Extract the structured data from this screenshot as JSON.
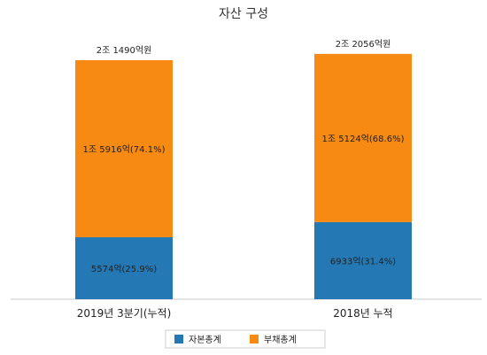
{
  "chart_data": {
    "type": "bar",
    "stacked": true,
    "title": "자산 구성",
    "categories": [
      "2019년 3분기(누적)",
      "2018년 누적"
    ],
    "totals": [
      "2조 1490억원",
      "2조 2056억원"
    ],
    "total_values": [
      21490,
      22056
    ],
    "series": [
      {
        "name": "자본총계",
        "color": "#2478b4",
        "values": [
          5574,
          6933
        ],
        "labels": [
          "5574억(25.9%)",
          "6933억(31.4%)"
        ]
      },
      {
        "name": "부채총계",
        "color": "#f68a12",
        "values": [
          15916,
          15124
        ],
        "labels": [
          "1조 5916억(74.1%)",
          "1조 5124억(68.6%)"
        ]
      }
    ],
    "ylim": [
      0,
      24000
    ],
    "grid": false,
    "legend_position": "bottom"
  }
}
